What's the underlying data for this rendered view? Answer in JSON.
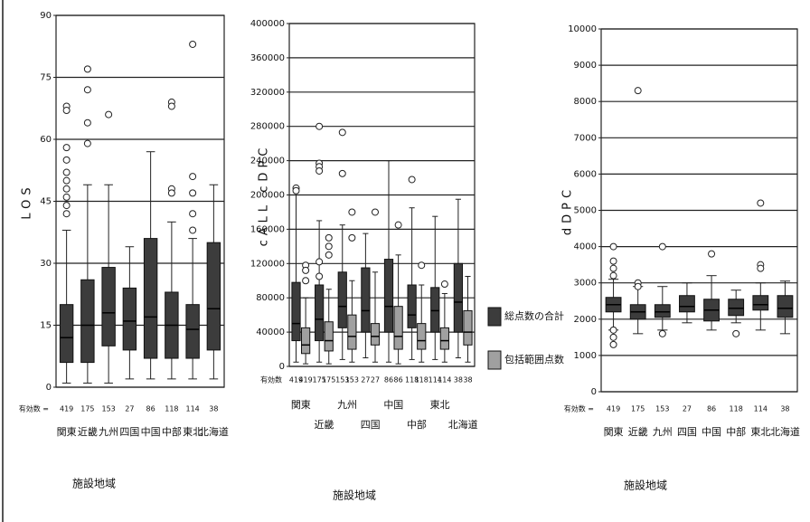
{
  "chart_data": [
    {
      "type": "box",
      "ylabel": "LOS",
      "ylim": [
        0,
        90
      ],
      "yticks": [
        0,
        15,
        30,
        45,
        60,
        75,
        90
      ],
      "grid": true,
      "categories": [
        "関東",
        "近畿",
        "九州",
        "四国",
        "中国",
        "中部",
        "東北",
        "北海道"
      ],
      "n_label": "有効数 =",
      "n": [
        419,
        175,
        153,
        27,
        86,
        118,
        114,
        38
      ],
      "xlabel": "施設地域",
      "series": [
        {
          "color": "#3c3c3c",
          "min": [
            1,
            1,
            1,
            2,
            2,
            2,
            2,
            2
          ],
          "q1": [
            6,
            6,
            10,
            9,
            7,
            7,
            7,
            9
          ],
          "median": [
            12,
            15,
            18,
            16,
            17,
            15,
            14,
            19
          ],
          "q3": [
            20,
            26,
            29,
            24,
            36,
            23,
            20,
            35
          ],
          "max": [
            38,
            49,
            49,
            34,
            57,
            40,
            36,
            49
          ],
          "outliers": [
            [
              68,
              67,
              58,
              55,
              52,
              50,
              48,
              46,
              44,
              42
            ],
            [
              77,
              72,
              64,
              59
            ],
            [
              66
            ],
            [],
            [],
            [
              69,
              68,
              48,
              47
            ],
            [
              83,
              51,
              47,
              42,
              38
            ],
            []
          ]
        }
      ]
    },
    {
      "type": "box",
      "ylabel": "cALL cDPC",
      "ylim": [
        0,
        400000
      ],
      "yticks": [
        0,
        40000,
        80000,
        120000,
        160000,
        200000,
        240000,
        280000,
        320000,
        360000,
        400000
      ],
      "grid": true,
      "categories": [
        "関東",
        "近畿",
        "九州",
        "四国",
        "中国",
        "中部",
        "東北",
        "北海道"
      ],
      "n_label": "有効数",
      "n": [
        419,
        175,
        153,
        27,
        86,
        118,
        114,
        38
      ],
      "xlabel": "施設地域",
      "series": [
        {
          "name": "総点数の合計",
          "color": "#3c3c3c",
          "min": [
            5000,
            5000,
            8000,
            10000,
            5000,
            8000,
            8000,
            10000
          ],
          "q1": [
            30000,
            30000,
            45000,
            40000,
            40000,
            45000,
            40000,
            40000
          ],
          "median": [
            50000,
            55000,
            70000,
            65000,
            70000,
            60000,
            65000,
            75000
          ],
          "q3": [
            98000,
            95000,
            110000,
            115000,
            125000,
            95000,
            92000,
            120000
          ],
          "max": [
            200000,
            170000,
            165000,
            155000,
            240000,
            185000,
            175000,
            195000
          ],
          "outliers": [
            [
              208000,
              205000
            ],
            [
              280000,
              237000,
              233000,
              228000,
              122000,
              105000
            ],
            [
              273000,
              225000
            ],
            [],
            [],
            [
              218000
            ],
            [],
            []
          ]
        },
        {
          "name": "包括範囲点数",
          "color": "#a0a0a0",
          "min": [
            3000,
            3000,
            5000,
            5000,
            3000,
            5000,
            5000,
            5000
          ],
          "q1": [
            15000,
            18000,
            20000,
            25000,
            20000,
            20000,
            20000,
            25000
          ],
          "median": [
            25000,
            30000,
            35000,
            35000,
            35000,
            30000,
            30000,
            40000
          ],
          "q3": [
            45000,
            52000,
            60000,
            50000,
            70000,
            50000,
            45000,
            65000
          ],
          "max": [
            80000,
            90000,
            100000,
            110000,
            130000,
            95000,
            85000,
            105000
          ],
          "outliers": [
            [
              118000,
              112000,
              100000
            ],
            [
              150000,
              140000,
              130000
            ],
            [
              180000,
              150000
            ],
            [
              180000
            ],
            [
              165000
            ],
            [
              118000
            ],
            [
              96000
            ],
            []
          ]
        }
      ]
    },
    {
      "type": "box",
      "ylabel": "dDPC",
      "ylim": [
        0,
        10000
      ],
      "yticks": [
        0,
        1000,
        2000,
        3000,
        4000,
        5000,
        6000,
        7000,
        8000,
        9000,
        10000
      ],
      "grid": true,
      "categories": [
        "関東",
        "近畿",
        "九州",
        "四国",
        "中国",
        "中部",
        "東北",
        "北海道"
      ],
      "n_label": "有効数 =",
      "n": [
        419,
        175,
        153,
        27,
        86,
        118,
        114,
        38
      ],
      "xlabel": "施設地域",
      "series": [
        {
          "color": "#3c3c3c",
          "min": [
            1700,
            1600,
            1700,
            1900,
            1700,
            1900,
            1700,
            1600
          ],
          "q1": [
            2200,
            2000,
            2050,
            2200,
            1950,
            2100,
            2250,
            2050
          ],
          "median": [
            2400,
            2200,
            2200,
            2350,
            2250,
            2300,
            2400,
            2300
          ],
          "q3": [
            2600,
            2400,
            2400,
            2650,
            2550,
            2550,
            2650,
            2650
          ],
          "max": [
            3100,
            2900,
            2900,
            3000,
            3200,
            2800,
            3000,
            3050
          ],
          "outliers": [
            [
              4000,
              3600,
              3400,
              3200,
              1700,
              1500,
              1300
            ],
            [
              8300,
              3000,
              2900
            ],
            [
              4000,
              1600
            ],
            [],
            [
              3800
            ],
            [
              1600
            ],
            [
              5200,
              3500,
              3400
            ],
            []
          ]
        }
      ]
    }
  ]
}
